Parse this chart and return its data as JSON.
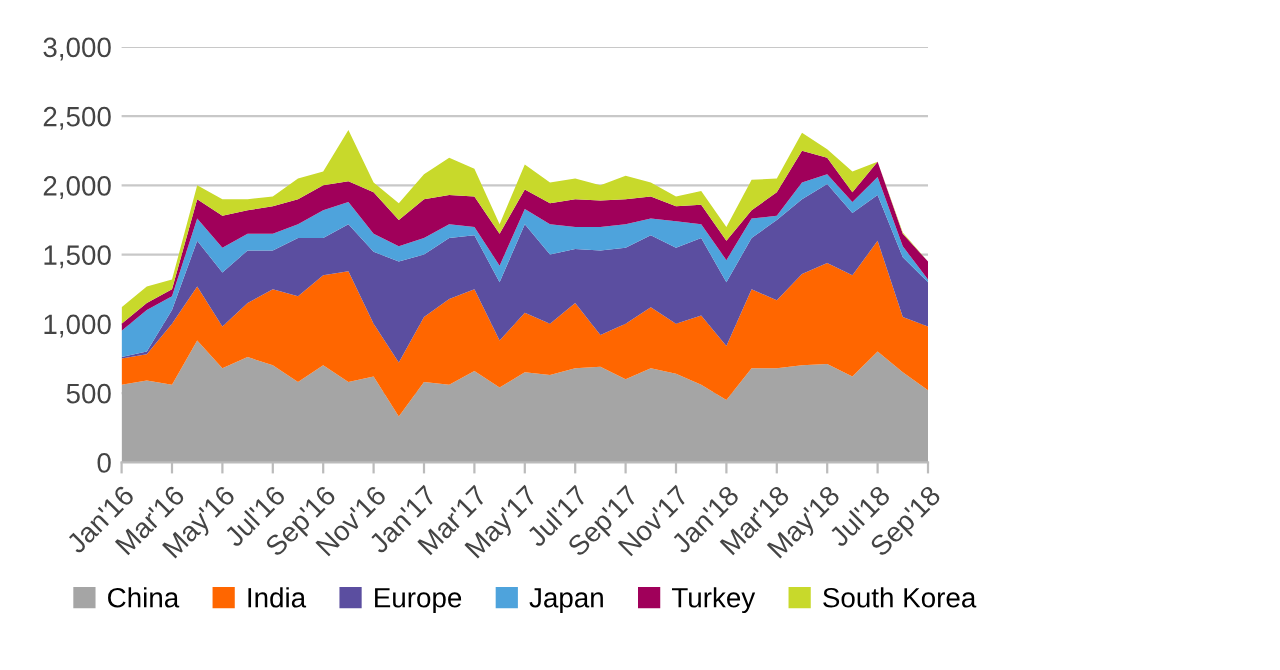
{
  "chart_data": {
    "type": "area",
    "stacked": true,
    "categories": [
      "Jan'16",
      null,
      "Mar'16",
      null,
      "May'16",
      null,
      "Jul'16",
      null,
      "Sep'16",
      null,
      "Nov'16",
      null,
      "Jan'17",
      null,
      "Mar'17",
      null,
      "May'17",
      null,
      "Jul'17",
      null,
      "Sep'17",
      null,
      "Nov'17",
      null,
      "Jan'18",
      null,
      "Mar'18",
      null,
      "May'18",
      null,
      "Jul'18",
      null,
      "Sep'18"
    ],
    "series": [
      {
        "name": "China",
        "color": "#a5a5a5",
        "values": [
          560,
          590,
          560,
          880,
          680,
          760,
          700,
          580,
          700,
          580,
          620,
          330,
          580,
          560,
          660,
          540,
          650,
          630,
          680,
          690,
          600,
          680,
          640,
          560,
          450,
          680,
          680,
          700,
          710,
          620,
          800,
          650,
          520
        ]
      },
      {
        "name": "India",
        "color": "#ff6600",
        "values": [
          190,
          190,
          440,
          390,
          300,
          390,
          550,
          620,
          650,
          800,
          380,
          390,
          470,
          620,
          590,
          340,
          430,
          370,
          470,
          230,
          400,
          440,
          360,
          500,
          390,
          570,
          490,
          660,
          730,
          730,
          800,
          400,
          460
        ]
      },
      {
        "name": "Europe",
        "color": "#5b4ea0",
        "values": [
          10,
          20,
          100,
          330,
          390,
          380,
          280,
          420,
          270,
          340,
          520,
          730,
          450,
          440,
          390,
          420,
          640,
          500,
          390,
          610,
          550,
          520,
          550,
          560,
          460,
          370,
          580,
          540,
          570,
          450,
          330,
          430,
          320
        ]
      },
      {
        "name": "Japan",
        "color": "#4ea3dc",
        "values": [
          190,
          300,
          100,
          160,
          180,
          120,
          120,
          100,
          200,
          160,
          130,
          110,
          120,
          100,
          60,
          120,
          110,
          220,
          160,
          170,
          170,
          120,
          190,
          100,
          160,
          140,
          30,
          120,
          70,
          80,
          130,
          80,
          20
        ]
      },
      {
        "name": "Turkey",
        "color": "#a0005a",
        "values": [
          50,
          50,
          50,
          140,
          230,
          170,
          200,
          180,
          180,
          150,
          300,
          190,
          280,
          210,
          220,
          230,
          140,
          150,
          200,
          190,
          180,
          160,
          110,
          140,
          140,
          60,
          170,
          230,
          120,
          70,
          110,
          90,
          130
        ]
      },
      {
        "name": "South Korea",
        "color": "#c8d92b",
        "values": [
          120,
          120,
          70,
          100,
          120,
          80,
          70,
          150,
          100,
          370,
          70,
          120,
          180,
          270,
          200,
          70,
          180,
          150,
          150,
          110,
          170,
          100,
          70,
          100,
          100,
          220,
          100,
          130,
          60,
          150,
          0,
          10,
          0
        ]
      }
    ],
    "ylim": [
      0,
      3000
    ],
    "yticks": [
      {
        "value": 0,
        "label": "0"
      },
      {
        "value": 500,
        "label": "500"
      },
      {
        "value": 1000,
        "label": "1,000"
      },
      {
        "value": 1500,
        "label": "1,500"
      },
      {
        "value": 2000,
        "label": "2,000"
      },
      {
        "value": 2500,
        "label": "2,500"
      },
      {
        "value": 3000,
        "label": "3,000"
      }
    ],
    "grid": "y",
    "legend": "bottom"
  }
}
